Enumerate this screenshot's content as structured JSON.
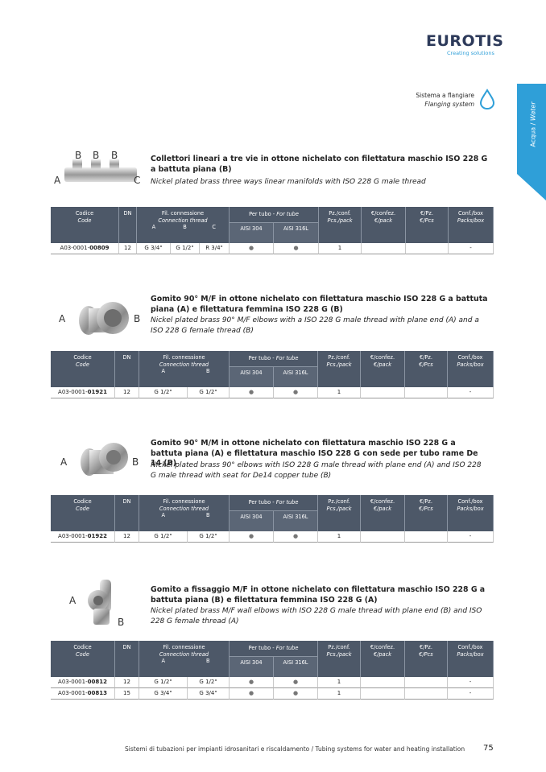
{
  "header": {
    "logo": "EUROTIS",
    "tagline": "Creating solutions",
    "system_it": "Sistema a flangiare",
    "system_en": "Flanging system"
  },
  "side_tab": {
    "it": "Acqua /",
    "en": "Water"
  },
  "table_header": {
    "code_it": "Codice",
    "code_en": "Code",
    "dn": "DN",
    "thread_it": "Fil. connessione",
    "thread_en": "Connection thread",
    "tube_it": "Per tubo -",
    "tube_en": "For tube",
    "aisi304": "AISI 304",
    "aisi316": "AISI 316L",
    "pcs_it": "Pz./conf.",
    "pcs_en": "Pcs./pack",
    "pack_it": "€/confez.",
    "pack_en": "€/pack",
    "pz_it": "€/Pz.",
    "pz_en": "€/Pcs",
    "box_it": "Conf./box",
    "box_en": "Packs/box"
  },
  "products": [
    {
      "title_it": "Collettori lineari a tre vie in ottone nichelato con filettatura maschio ISO 228 G a battuta piana (B)",
      "title_en": "Nickel plated brass three ways linear manifolds with ISO 228 G male thread",
      "labels": [
        "B",
        "B",
        "B",
        "A",
        "C"
      ],
      "threads": [
        "A",
        "B",
        "C"
      ],
      "rows": [
        {
          "code_prefix": "A03-0001-",
          "code_suffix": "00809",
          "dn": "12",
          "thread_values": [
            "G 3/4\"",
            "G 1/2\"",
            "R 3/4\""
          ],
          "aisi304": "●",
          "aisi316": "●",
          "pcs": "1",
          "box": "-"
        }
      ]
    },
    {
      "title_it": "Gomito 90° M/F in ottone nichelato con filettatura maschio ISO 228 G a battuta piana (A) e filettatura femmina ISO 228 G (B)",
      "title_en": "Nickel plated brass 90° M/F elbows with a ISO 228 G male thread with plane end (A) and a ISO 228 G female thread (B)",
      "labels": [
        "A",
        "B"
      ],
      "threads": [
        "A",
        "B"
      ],
      "rows": [
        {
          "code_prefix": "A03-0001-",
          "code_suffix": "01921",
          "dn": "12",
          "thread_values": [
            "G 1/2\"",
            "G 1/2\""
          ],
          "aisi304": "●",
          "aisi316": "●",
          "pcs": "1",
          "box": "-"
        }
      ]
    },
    {
      "title_it": "Gomito 90° M/M in ottone nichelato con filettatura maschio ISO 228 G a battuta piana (A) e filettatura maschio ISO 228 G con sede per tubo rame De 14 (B)",
      "title_en": "Nickel plated brass 90° elbows with ISO 228 G male thread with plane end (A) and ISO 228 G male thread with seat for De14 copper tube (B)",
      "labels": [
        "A",
        "B"
      ],
      "threads": [
        "A",
        "B"
      ],
      "rows": [
        {
          "code_prefix": "A03-0001-",
          "code_suffix": "01922",
          "dn": "12",
          "thread_values": [
            "G 1/2\"",
            "G 1/2\""
          ],
          "aisi304": "●",
          "aisi316": "●",
          "pcs": "1",
          "box": "-"
        }
      ]
    },
    {
      "title_it": "Gomito a fissaggio M/F in ottone nichelato con filettatura maschio ISO 228 G a battuta piana (B) e filettatura femmina ISO 228 G (A)",
      "title_en": "Nickel plated brass M/F wall elbows with ISO 228 G male thread with plane end (B) and ISO 228 G female thread (A)",
      "labels": [
        "A",
        "B"
      ],
      "threads": [
        "A",
        "B"
      ],
      "rows": [
        {
          "code_prefix": "A03-0001-",
          "code_suffix": "00812",
          "dn": "12",
          "thread_values": [
            "G 1/2\"",
            "G 1/2\""
          ],
          "aisi304": "●",
          "aisi316": "●",
          "pcs": "1",
          "box": "-"
        },
        {
          "code_prefix": "A03-0001-",
          "code_suffix": "00813",
          "dn": "15",
          "thread_values": [
            "G 3/4\"",
            "G 3/4\""
          ],
          "aisi304": "●",
          "aisi316": "●",
          "pcs": "1",
          "box": "-"
        }
      ]
    }
  ],
  "footer": {
    "text": "Sistemi di tubazioni per impianti idrosanitari e riscaldamento / Tubing systems for water and heating installation",
    "page": "75"
  }
}
